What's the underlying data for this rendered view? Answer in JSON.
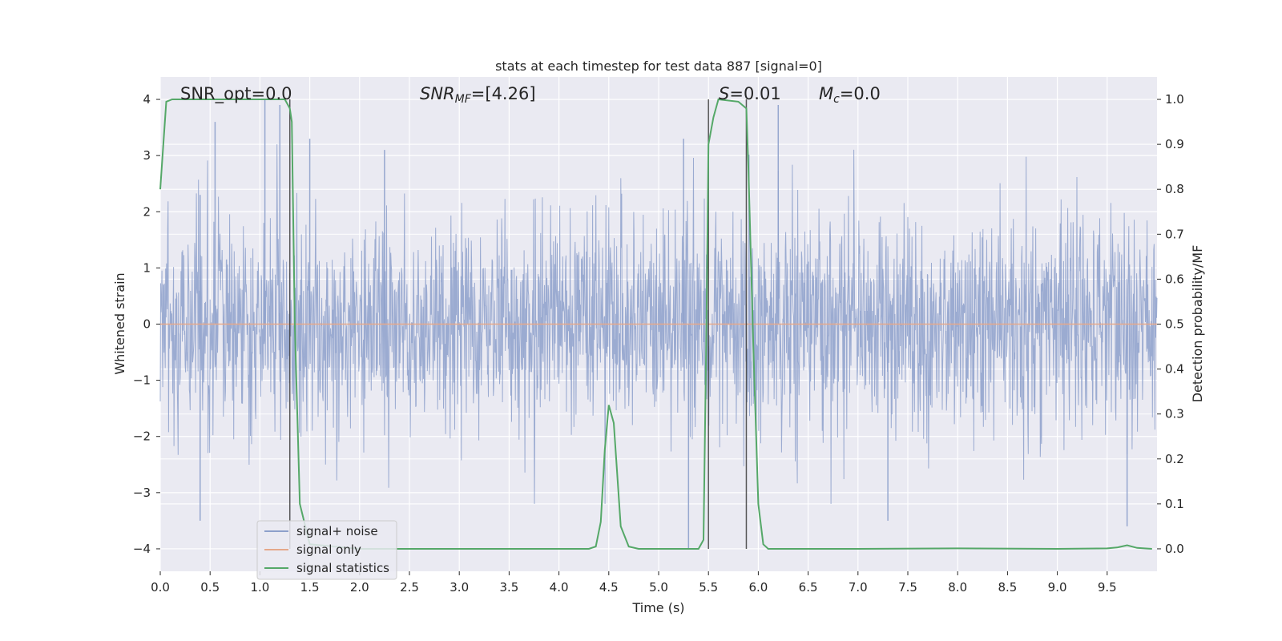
{
  "chart_data": {
    "type": "line",
    "title": "stats at each timestep for test data 887 [signal=0]",
    "xlabel": "Time (s)",
    "ylabel_left": "Whitened strain",
    "ylabel_right": "Detection probability/MF",
    "xlim": [
      0.0,
      10.0
    ],
    "ylim_left": [
      -4.4,
      4.4
    ],
    "ylim_right": [
      -0.05,
      1.05
    ],
    "x_ticks": [
      0.0,
      0.5,
      1.0,
      1.5,
      2.0,
      2.5,
      3.0,
      3.5,
      4.0,
      4.5,
      5.0,
      5.5,
      6.0,
      6.5,
      7.0,
      7.5,
      8.0,
      8.5,
      9.0,
      9.5
    ],
    "x_tick_labels": [
      "0.0",
      "0.5",
      "1.0",
      "1.5",
      "2.0",
      "2.5",
      "3.0",
      "3.5",
      "4.0",
      "4.5",
      "5.0",
      "5.5",
      "6.0",
      "6.5",
      "7.0",
      "7.5",
      "8.0",
      "8.5",
      "9.0",
      "9.5"
    ],
    "y_left_ticks": [
      -4,
      -3,
      -2,
      -1,
      0,
      1,
      2,
      3,
      4
    ],
    "y_left_tick_labels": [
      "−4",
      "−3",
      "−2",
      "−1",
      "0",
      "1",
      "2",
      "3",
      "4"
    ],
    "y_right_ticks": [
      0.0,
      0.1,
      0.2,
      0.3,
      0.4,
      0.5,
      0.6,
      0.7,
      0.8,
      0.9,
      1.0
    ],
    "y_right_tick_labels": [
      "0.0",
      "0.1",
      "0.2",
      "0.3",
      "0.4",
      "0.5",
      "0.6",
      "0.7",
      "0.8",
      "0.9",
      "1.0"
    ],
    "grid": true,
    "legend_position": "lower-left",
    "annotations": {
      "snr_opt": "SNR_opt=0.0",
      "snr_mf": "SNR",
      "snr_mf_sub": "MF",
      "snr_mf_value": "=[4.26]",
      "s_stat": "S",
      "s_value": "=0.01",
      "mc": "M",
      "mc_sub": "c",
      "mc_value": "=0.0"
    },
    "series": [
      {
        "name": "signal+ noise",
        "axis": "left",
        "color": "#8da0cb",
        "style": "dense-noise",
        "envelope_typical": [
          -1.6,
          1.6
        ],
        "spike_extremes": [
          [
            0.4,
            2.3
          ],
          [
            0.55,
            3.6
          ],
          [
            1.05,
            4.0
          ],
          [
            1.2,
            3.9
          ],
          [
            1.5,
            3.3
          ],
          [
            2.25,
            3.1
          ],
          [
            5.3,
            -4.0
          ],
          [
            6.2,
            3.9
          ],
          [
            5.25,
            3.3
          ],
          [
            0.4,
            -3.5
          ],
          [
            7.3,
            -3.5
          ],
          [
            9.7,
            -3.6
          ]
        ]
      },
      {
        "name": "signal only",
        "axis": "left",
        "color": "#e5a88a",
        "x": [
          0.0,
          10.0
        ],
        "y": [
          0.0,
          0.0
        ]
      },
      {
        "name": "signal statistics",
        "axis": "right",
        "color": "#55a868",
        "x": [
          0.0,
          0.06,
          0.12,
          0.2,
          0.5,
          1.0,
          1.25,
          1.3,
          1.32,
          1.35,
          1.4,
          1.5,
          2.0,
          3.0,
          4.0,
          4.3,
          4.37,
          4.42,
          4.46,
          4.5,
          4.55,
          4.58,
          4.62,
          4.7,
          4.8,
          5.0,
          5.4,
          5.45,
          5.48,
          5.5,
          5.55,
          5.6,
          5.8,
          5.88,
          5.9,
          5.95,
          6.0,
          6.05,
          6.1,
          7.0,
          8.0,
          9.0,
          9.5,
          9.6,
          9.7,
          9.8,
          9.95
        ],
        "y": [
          0.8,
          0.995,
          1.0,
          1.0,
          1.0,
          1.0,
          1.0,
          0.98,
          0.95,
          0.5,
          0.1,
          0.01,
          0.0,
          0.0,
          0.0,
          0.0,
          0.005,
          0.06,
          0.22,
          0.32,
          0.28,
          0.18,
          0.05,
          0.005,
          0.0,
          0.0,
          0.0,
          0.02,
          0.5,
          0.9,
          0.96,
          1.0,
          0.995,
          0.98,
          0.85,
          0.45,
          0.1,
          0.01,
          0.0,
          0.0,
          0.001,
          0.0,
          0.001,
          0.003,
          0.008,
          0.002,
          0.0
        ]
      }
    ],
    "vertical_lines": [
      1.3,
      5.5,
      5.88
    ]
  }
}
